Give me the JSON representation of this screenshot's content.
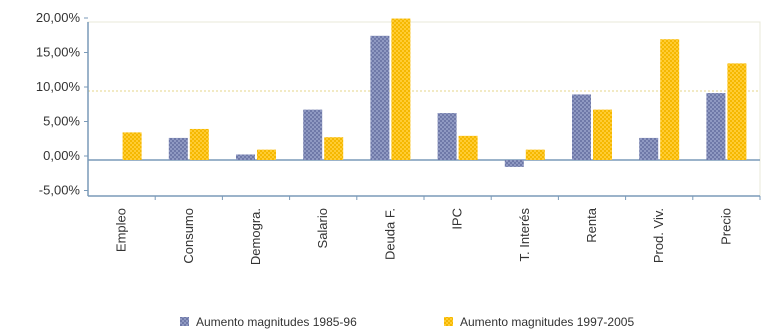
{
  "chart_data": {
    "type": "bar",
    "categories": [
      "Empleo",
      "Consumo",
      "Demogra.",
      "Salario",
      "Deuda F.",
      "IPC",
      "T. Interés",
      "Renta",
      "Prod. Viv.",
      "Precio"
    ],
    "series": [
      {
        "name": "Aumento magnitudes 1985-96",
        "color": "#8f99c2",
        "values": [
          0,
          3.2,
          0.8,
          7.3,
          18.0,
          6.8,
          -1.0,
          9.5,
          3.2,
          9.7
        ]
      },
      {
        "name": "Aumento magnitudes 1997-2005",
        "color": "#f5b800",
        "values": [
          4.0,
          4.5,
          1.5,
          3.3,
          20.5,
          3.5,
          1.5,
          7.3,
          17.5,
          14.0
        ]
      }
    ],
    "yticks": [
      "20,00%",
      "15,00%",
      "10,00%",
      "5,00%",
      "0,00%",
      "-5,00%"
    ],
    "ylim": [
      -5,
      20
    ],
    "legend_position": "bottom"
  }
}
